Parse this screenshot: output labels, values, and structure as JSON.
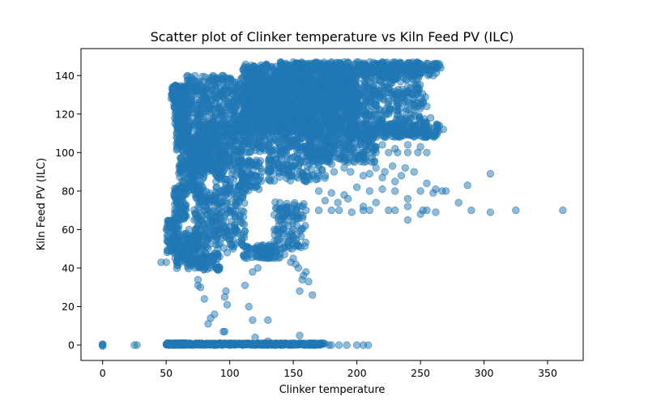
{
  "chart_data": {
    "type": "scatter",
    "title": "Scatter plot of Clinker temperature vs Kiln Feed PV (ILC)",
    "xlabel": "Clinker temperature",
    "ylabel": "Kiln Feed PV (ILC)",
    "xlim": [
      -17,
      378
    ],
    "ylim": [
      -8,
      154
    ],
    "xticks": [
      0,
      50,
      100,
      150,
      200,
      250,
      300,
      350
    ],
    "yticks": [
      0,
      20,
      40,
      60,
      80,
      100,
      120,
      140
    ],
    "xtick_labels": [
      "0",
      "50",
      "100",
      "150",
      "200",
      "250",
      "300",
      "350"
    ],
    "ytick_labels": [
      "0",
      "20",
      "40",
      "60",
      "80",
      "100",
      "120",
      "140"
    ],
    "grid": false,
    "marker_color": "#1f77b4",
    "marker_alpha": 0.5,
    "series": [
      {
        "points": [
          [
            0,
            0
          ],
          [
            0,
            0.5
          ],
          [
            0,
            -0.5
          ],
          [
            0,
            0.3
          ],
          [
            25,
            0
          ],
          [
            27,
            0
          ],
          [
            52,
            0
          ],
          [
            60,
            0
          ],
          [
            70,
            0
          ],
          [
            80,
            0
          ],
          [
            90,
            0
          ],
          [
            100,
            0
          ],
          [
            110,
            0
          ],
          [
            120,
            0
          ],
          [
            130,
            0
          ],
          [
            140,
            0
          ],
          [
            150,
            0
          ],
          [
            160,
            0
          ],
          [
            166,
            0
          ],
          [
            178,
            0
          ],
          [
            180,
            0
          ],
          [
            186,
            0
          ],
          [
            192,
            0
          ],
          [
            200,
            0
          ],
          [
            205,
            0
          ],
          [
            209,
            0
          ],
          [
            95,
            7
          ],
          [
            96,
            7
          ],
          [
            120,
            4
          ],
          [
            155,
            5
          ],
          [
            130,
            2
          ],
          [
            130,
            13
          ],
          [
            118,
            13
          ],
          [
            115,
            20
          ],
          [
            112,
            31
          ],
          [
            98,
            21
          ],
          [
            96,
            25
          ],
          [
            97,
            28
          ],
          [
            88,
            16
          ],
          [
            85,
            14
          ],
          [
            83,
            11
          ],
          [
            80,
            24
          ],
          [
            75,
            31
          ],
          [
            75,
            34
          ],
          [
            77,
            30
          ],
          [
            155,
            28
          ],
          [
            157,
            34
          ],
          [
            160,
            38
          ],
          [
            165,
            26
          ],
          [
            150,
            45
          ],
          [
            148,
            43
          ],
          [
            152,
            42
          ],
          [
            154,
            40
          ],
          [
            158,
            36
          ],
          [
            162,
            33
          ],
          [
            128,
            48
          ],
          [
            125,
            50
          ],
          [
            131,
            52
          ],
          [
            137,
            48
          ],
          [
            143,
            47
          ],
          [
            149,
            50
          ],
          [
            118,
            38
          ],
          [
            122,
            40
          ],
          [
            46,
            43
          ],
          [
            50,
            43
          ],
          [
            57,
            45
          ],
          [
            63,
            48
          ],
          [
            70,
            50
          ],
          [
            78,
            45
          ],
          [
            85,
            43
          ],
          [
            92,
            46
          ],
          [
            98,
            48
          ],
          [
            55,
            60
          ],
          [
            60,
            62
          ],
          [
            66,
            58
          ],
          [
            72,
            65
          ],
          [
            80,
            70
          ],
          [
            88,
            75
          ],
          [
            95,
            80
          ],
          [
            100,
            82
          ],
          [
            58,
            52
          ],
          [
            62,
            55
          ],
          [
            68,
            60
          ],
          [
            75,
            57
          ],
          [
            84,
            62
          ],
          [
            92,
            67
          ],
          [
            138,
            55
          ],
          [
            142,
            58
          ],
          [
            146,
            62
          ],
          [
            150,
            60
          ],
          [
            135,
            60
          ],
          [
            140,
            65
          ],
          [
            145,
            70
          ],
          [
            152,
            70
          ],
          [
            160,
            70
          ],
          [
            170,
            70
          ],
          [
            180,
            70
          ],
          [
            186,
            70
          ],
          [
            196,
            69
          ],
          [
            205,
            70
          ],
          [
            210,
            70
          ],
          [
            225,
            70
          ],
          [
            240,
            65
          ],
          [
            250,
            68
          ],
          [
            252,
            70
          ],
          [
            262,
            69
          ],
          [
            175,
            75
          ],
          [
            185,
            74
          ],
          [
            193,
            76
          ],
          [
            205,
            72
          ],
          [
            215,
            74
          ],
          [
            230,
            70
          ],
          [
            240,
            72
          ],
          [
            255,
            70
          ],
          [
            280,
            74
          ],
          [
            290,
            70
          ],
          [
            305,
            69
          ],
          [
            325,
            70
          ],
          [
            362,
            70
          ],
          [
            170,
            80
          ],
          [
            180,
            79
          ],
          [
            190,
            78
          ],
          [
            200,
            82
          ],
          [
            210,
            80
          ],
          [
            220,
            81
          ],
          [
            230,
            80
          ],
          [
            240,
            76
          ],
          [
            250,
            80
          ],
          [
            260,
            79
          ],
          [
            270,
            80
          ],
          [
            287,
            83
          ],
          [
            305,
            89
          ],
          [
            160,
            85
          ],
          [
            168,
            86
          ],
          [
            175,
            88
          ],
          [
            182,
            90
          ],
          [
            190,
            92
          ],
          [
            198,
            95
          ],
          [
            210,
            89
          ],
          [
            220,
            87
          ],
          [
            230,
            85
          ],
          [
            238,
            92
          ],
          [
            245,
            90
          ],
          [
            255,
            84
          ],
          [
            262,
            81
          ],
          [
            267,
            80
          ],
          [
            170,
            93
          ],
          [
            180,
            94
          ],
          [
            195,
            90
          ],
          [
            205,
            88
          ],
          [
            215,
            92
          ],
          [
            222,
            90
          ],
          [
            228,
            93
          ],
          [
            235,
            88
          ],
          [
            120,
            88
          ],
          [
            125,
            90
          ],
          [
            130,
            91
          ],
          [
            135,
            93
          ],
          [
            140,
            92
          ],
          [
            145,
            91
          ],
          [
            150,
            93
          ],
          [
            105,
            92
          ],
          [
            110,
            94
          ],
          [
            115,
            96
          ],
          [
            100,
            95
          ],
          [
            95,
            93
          ],
          [
            205,
            100
          ],
          [
            215,
            100
          ],
          [
            225,
            100
          ],
          [
            232,
            100
          ],
          [
            240,
            100
          ],
          [
            248,
            100
          ],
          [
            255,
            100
          ],
          [
            210,
            103
          ],
          [
            220,
            104
          ],
          [
            230,
            102
          ],
          [
            240,
            104
          ],
          [
            250,
            103
          ],
          [
            170,
            100
          ],
          [
            180,
            100
          ],
          [
            190,
            100
          ],
          [
            198,
            100
          ],
          [
            215,
            110
          ],
          [
            225,
            112
          ],
          [
            235,
            110
          ],
          [
            245,
            112
          ],
          [
            255,
            110
          ],
          [
            262,
            111
          ],
          [
            268,
            112
          ],
          [
            230,
            115
          ],
          [
            240,
            116
          ],
          [
            250,
            117
          ],
          [
            258,
            118
          ],
          [
            265,
            114
          ],
          [
            225,
            120
          ],
          [
            232,
            122
          ],
          [
            238,
            118
          ],
          [
            245,
            125
          ],
          [
            250,
            123
          ],
          [
            255,
            124
          ],
          [
            230,
            145
          ],
          [
            240,
            146
          ],
          [
            250,
            146
          ],
          [
            255,
            145
          ],
          [
            260,
            146
          ],
          [
            265,
            145
          ],
          [
            248,
            143
          ],
          [
            235,
            143
          ],
          [
            222,
            142
          ],
          [
            212,
            141
          ],
          [
            140,
            147
          ],
          [
            150,
            147
          ],
          [
            160,
            146
          ],
          [
            170,
            146
          ],
          [
            180,
            147
          ],
          [
            190,
            147
          ],
          [
            200,
            147
          ],
          [
            210,
            147
          ],
          [
            220,
            147
          ],
          [
            230,
            147
          ],
          [
            240,
            146
          ],
          [
            250,
            146
          ],
          [
            260,
            145
          ],
          [
            266,
            144
          ]
        ],
        "segments": [
          {
            "x": [
              50,
              70
            ],
            "y": [
              0,
              1
            ],
            "n": 200
          },
          {
            "x": [
              70,
              175
            ],
            "y": [
              0,
              1
            ],
            "n": 450
          },
          {
            "x": [
              54,
              66
            ],
            "y": [
              128,
              135
            ],
            "n": 140
          },
          {
            "x": [
              56,
              66
            ],
            "y": [
              115,
              132
            ],
            "n": 100
          },
          {
            "x": [
              58,
              68
            ],
            "y": [
              100,
              116
            ],
            "n": 80
          },
          {
            "x": [
              60,
              75
            ],
            "y": [
              80,
              100
            ],
            "n": 90
          },
          {
            "x": [
              56,
              66
            ],
            "y": [
              65,
              82
            ],
            "n": 80
          },
          {
            "x": [
              50,
              60
            ],
            "y": [
              47,
              65
            ],
            "n": 70
          },
          {
            "x": [
              55,
              75
            ],
            "y": [
              48,
              58
            ],
            "n": 90
          },
          {
            "x": [
              58,
              92
            ],
            "y": [
              39,
              48
            ],
            "n": 120
          },
          {
            "x": [
              68,
              80
            ],
            "y": [
              80,
              110
            ],
            "n": 120
          },
          {
            "x": [
              72,
              90
            ],
            "y": [
              50,
              80
            ],
            "n": 130
          },
          {
            "x": [
              80,
              90
            ],
            "y": [
              90,
              112
            ],
            "n": 80
          },
          {
            "x": [
              88,
              112
            ],
            "y": [
              50,
              95
            ],
            "n": 200
          },
          {
            "x": [
              92,
              110
            ],
            "y": [
              95,
              115
            ],
            "n": 120
          },
          {
            "x": [
              65,
              120
            ],
            "y": [
              112,
              140
            ],
            "n": 450
          },
          {
            "x": [
              75,
              95
            ],
            "y": [
              95,
              115
            ],
            "n": 70
          },
          {
            "x": [
              110,
              165
            ],
            "y": [
              100,
              146
            ],
            "n": 700
          },
          {
            "x": [
              120,
              200
            ],
            "y": [
              110,
              140
            ],
            "n": 800
          },
          {
            "x": [
              140,
              250
            ],
            "y": [
              130,
              147
            ],
            "n": 500
          },
          {
            "x": [
              150,
              265
            ],
            "y": [
              140,
              147
            ],
            "n": 220
          },
          {
            "x": [
              165,
              255
            ],
            "y": [
              108,
              132
            ],
            "n": 380
          },
          {
            "x": [
              160,
              215
            ],
            "y": [
              95,
              110
            ],
            "n": 220
          },
          {
            "x": [
              200,
              265
            ],
            "y": [
              108,
              115
            ],
            "n": 150
          },
          {
            "x": [
              130,
              175
            ],
            "y": [
              85,
              100
            ],
            "n": 120
          },
          {
            "x": [
              135,
              160
            ],
            "y": [
              50,
              75
            ],
            "n": 100
          },
          {
            "x": [
              110,
              140
            ],
            "y": [
              45,
              52
            ],
            "n": 80
          },
          {
            "x": [
              105,
              125
            ],
            "y": [
              80,
              96
            ],
            "n": 80
          }
        ]
      }
    ]
  }
}
